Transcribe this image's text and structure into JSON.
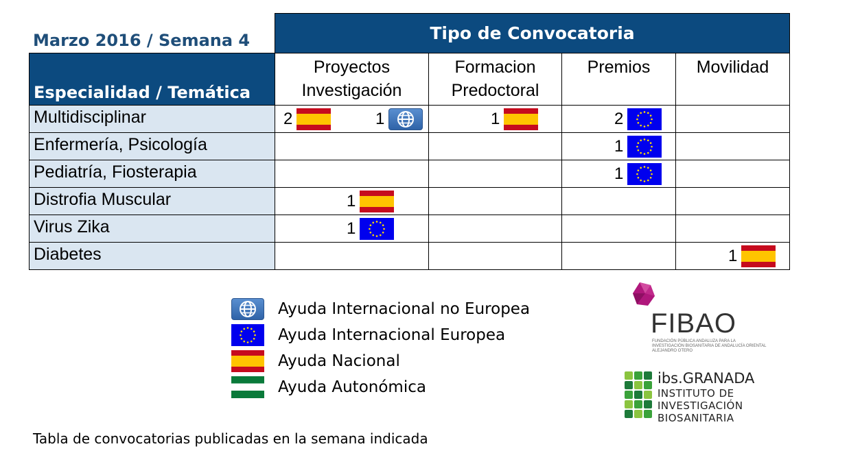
{
  "period": "Marzo 2016 / Semana 4",
  "table": {
    "group_header": "Tipo de Convocatoria",
    "row_header": "Especialidad / Temática",
    "columns": [
      {
        "line1": "Proyectos",
        "line2": "Investigación"
      },
      {
        "line1": "Formacion",
        "line2": "Predoctoral"
      },
      {
        "line1": "Premios",
        "line2": ""
      },
      {
        "line1": "Movilidad",
        "line2": ""
      }
    ],
    "rows": [
      {
        "label": "Multidisciplinar",
        "cells": [
          [
            {
              "count": "2",
              "type": "nacional",
              "icon": "spain-flag-icon"
            },
            {
              "count": "1",
              "type": "internacional-no-europea",
              "icon": "globe-icon"
            }
          ],
          [
            {
              "count": "1",
              "type": "nacional",
              "icon": "spain-flag-icon"
            }
          ],
          [
            {
              "count": "2",
              "type": "internacional-europea",
              "icon": "eu-flag-icon"
            }
          ],
          []
        ]
      },
      {
        "label": "Enfermería, Psicología",
        "cells": [
          [],
          [],
          [
            {
              "count": "1",
              "type": "internacional-europea",
              "icon": "eu-flag-icon"
            }
          ],
          []
        ]
      },
      {
        "label": "Pediatría, Fiosterapia",
        "cells": [
          [],
          [],
          [
            {
              "count": "1",
              "type": "internacional-europea",
              "icon": "eu-flag-icon"
            }
          ],
          []
        ]
      },
      {
        "label": "Distrofia Muscular",
        "cells": [
          [
            {
              "count": "1",
              "type": "nacional",
              "icon": "spain-flag-icon"
            }
          ],
          [],
          [],
          []
        ]
      },
      {
        "label": "Virus Zika",
        "cells": [
          [
            {
              "count": "1",
              "type": "internacional-europea",
              "icon": "eu-flag-icon"
            }
          ],
          [],
          [],
          []
        ]
      },
      {
        "label": "Diabetes",
        "cells": [
          [],
          [],
          [],
          [
            {
              "count": "1",
              "type": "nacional",
              "icon": "spain-flag-icon"
            }
          ]
        ]
      }
    ]
  },
  "legend": [
    {
      "icon": "globe-icon",
      "label": "Ayuda Internacional no Europea"
    },
    {
      "icon": "eu-flag-icon",
      "label": "Ayuda Internacional Europea"
    },
    {
      "icon": "spain-flag-icon",
      "label": "Ayuda Nacional"
    },
    {
      "icon": "andalusia-flag-icon",
      "label": "Ayuda Autonómica"
    }
  ],
  "logos": {
    "fibao": {
      "name": "FIBAO",
      "subtitle": "FUNDACIÓN PÚBLICA ANDALUZA PARA LA INVESTIGACIÓN BIOSANITARIA DE ANDALUCÍA ORIENTAL ALEJANDRO OTERO"
    },
    "ibs": {
      "title": "ibs.GRANADA",
      "line1": "INSTITUTO DE",
      "line2": "INVESTIGACIÓN",
      "line3": "BIOSANITARIA"
    }
  },
  "caption": "Tabla de convocatorias publicadas en la semana indicada",
  "colors": {
    "header_navy": "#0c4a7f",
    "title_blue": "#1f4e79",
    "row_label_bg": "#dae6f1",
    "fibao_magenta": "#b0177c",
    "ibs_green": "#3aa23a"
  }
}
